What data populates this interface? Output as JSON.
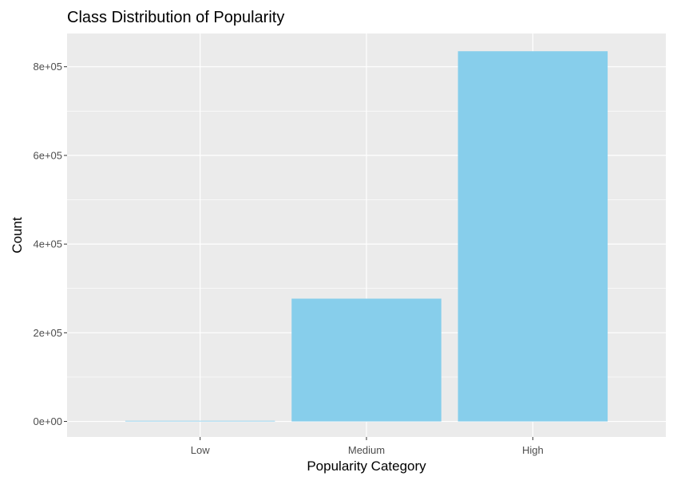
{
  "chart_data": {
    "type": "bar",
    "title": "Class Distribution of Popularity",
    "xlabel": "Popularity Category",
    "ylabel": "Count",
    "categories": [
      "Low",
      "Medium",
      "High"
    ],
    "values": [
      1500,
      277000,
      835000
    ],
    "ylim": [
      -35000,
      875000
    ],
    "yticks": [
      0,
      200000,
      400000,
      600000,
      800000
    ],
    "ytick_labels": [
      "0e+00",
      "2e+05",
      "4e+05",
      "6e+05",
      "8e+05"
    ],
    "grid": true,
    "legend": "none",
    "colors": {
      "bar": "#87CEEB",
      "panel_background": "#EBEBEB",
      "grid": "#FFFFFF"
    }
  }
}
